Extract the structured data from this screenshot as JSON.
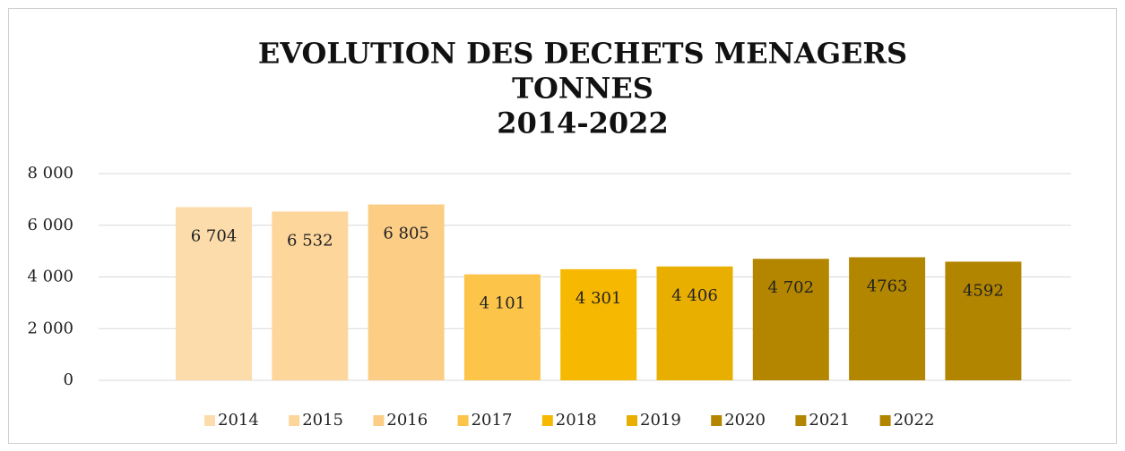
{
  "chart_data": {
    "type": "bar",
    "title": [
      "EVOLUTION DES DECHETS MENAGERS",
      "TONNES",
      "2014-2022"
    ],
    "categories": [
      null
    ],
    "series": [
      {
        "name": "2014",
        "color": "#fddcab",
        "values": [
          6704
        ],
        "value_labels": [
          "6 704"
        ]
      },
      {
        "name": "2015",
        "color": "#fdd69c",
        "values": [
          6532
        ],
        "value_labels": [
          "6 532"
        ]
      },
      {
        "name": "2016",
        "color": "#fccd85",
        "values": [
          6805
        ],
        "value_labels": [
          "6 805"
        ]
      },
      {
        "name": "2017",
        "color": "#fcc449",
        "values": [
          4101
        ],
        "value_labels": [
          "4 101"
        ]
      },
      {
        "name": "2018",
        "color": "#f6b800",
        "values": [
          4301
        ],
        "value_labels": [
          "4 301"
        ]
      },
      {
        "name": "2019",
        "color": "#e9af00",
        "values": [
          4406
        ],
        "value_labels": [
          "4 406"
        ]
      },
      {
        "name": "2020",
        "color": "#b48600",
        "values": [
          4702
        ],
        "value_labels": [
          "4 702"
        ]
      },
      {
        "name": "2021",
        "color": "#b38600",
        "values": [
          4763
        ],
        "value_labels": [
          "4763"
        ]
      },
      {
        "name": "2022",
        "color": "#b28500",
        "values": [
          4592
        ],
        "value_labels": [
          "4592"
        ]
      }
    ],
    "ylim": [
      0,
      8000
    ],
    "yticks": [
      0,
      {
        "value": 2000,
        "label": "2 000"
      },
      {
        "value": 4000,
        "label": "4 000"
      },
      {
        "value": 6000,
        "label": "6 000"
      },
      {
        "value": 8000,
        "label": "8 000"
      }
    ],
    "grid": true,
    "legend": "bottom"
  }
}
